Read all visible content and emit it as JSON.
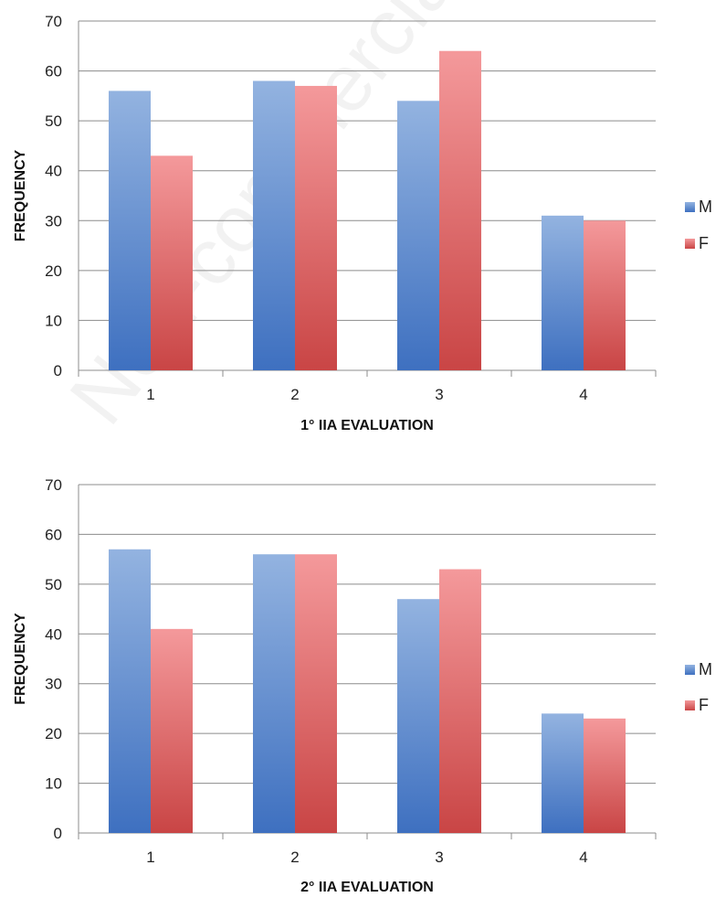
{
  "watermark": "Non-commercial use only",
  "colors": {
    "M_light": "#93b3e0",
    "M_dark": "#3e70c0",
    "F_light": "#f4999b",
    "F_dark": "#c94545",
    "grid": "#8c8c8c"
  },
  "chart_data": [
    {
      "type": "bar",
      "categories": [
        "1",
        "2",
        "3",
        "4"
      ],
      "series": [
        {
          "name": "M",
          "values": [
            56,
            58,
            54,
            31
          ]
        },
        {
          "name": "F",
          "values": [
            43,
            57,
            64,
            30
          ]
        }
      ],
      "xlabel": "1° IIA EVALUATION",
      "ylabel": "FREQUENCY",
      "ylim": [
        0,
        70
      ],
      "yticks": [
        "0",
        "10",
        "20",
        "30",
        "40",
        "50",
        "60",
        "70"
      ],
      "grid": true,
      "legend_position": "right"
    },
    {
      "type": "bar",
      "categories": [
        "1",
        "2",
        "3",
        "4"
      ],
      "series": [
        {
          "name": "M",
          "values": [
            57,
            56,
            47,
            24
          ]
        },
        {
          "name": "F",
          "values": [
            41,
            56,
            53,
            23
          ]
        }
      ],
      "xlabel": "2° IIA EVALUATION",
      "ylabel": "FREQUENCY",
      "ylim": [
        0,
        70
      ],
      "yticks": [
        "0",
        "10",
        "20",
        "30",
        "40",
        "50",
        "60",
        "70"
      ],
      "grid": true,
      "legend_position": "right"
    }
  ]
}
